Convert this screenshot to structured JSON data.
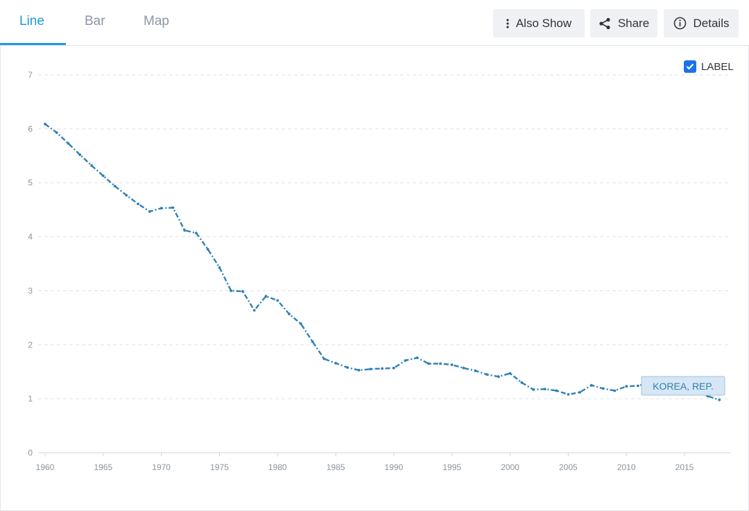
{
  "tabs": [
    {
      "label": "Line",
      "active": true
    },
    {
      "label": "Bar",
      "active": false
    },
    {
      "label": "Map",
      "active": false
    }
  ],
  "toolbar": {
    "also_show": "Also Show",
    "share": "Share",
    "details": "Details"
  },
  "legend": {
    "label": "LABEL",
    "checked": true
  },
  "icons": {
    "also_show": "vertical-dots-icon",
    "share": "share-icon",
    "details": "info-icon",
    "checkbox": "checkmark-icon"
  },
  "colors": {
    "accent": "#1a9ad6",
    "series": "#2f7fb5",
    "checkbox": "#1a73e8"
  },
  "chart_data": {
    "type": "line",
    "title": "",
    "xlabel": "",
    "ylabel": "",
    "xlim": [
      1960,
      2020
    ],
    "ylim": [
      0,
      7
    ],
    "x_ticks": [
      1960,
      1965,
      1970,
      1975,
      1980,
      1985,
      1990,
      1995,
      2000,
      2005,
      2010,
      2015
    ],
    "y_ticks": [
      0,
      1,
      2,
      3,
      4,
      5,
      6,
      7
    ],
    "grid": true,
    "line_style": "dash-dot",
    "x": [
      1960,
      1961,
      1962,
      1963,
      1964,
      1965,
      1966,
      1967,
      1968,
      1969,
      1970,
      1971,
      1972,
      1973,
      1974,
      1975,
      1976,
      1977,
      1978,
      1979,
      1980,
      1981,
      1982,
      1983,
      1984,
      1985,
      1986,
      1987,
      1988,
      1989,
      1990,
      1991,
      1992,
      1993,
      1994,
      1995,
      1996,
      1997,
      1998,
      1999,
      2000,
      2001,
      2002,
      2003,
      2004,
      2005,
      2006,
      2007,
      2008,
      2009,
      2010,
      2011,
      2012,
      2013,
      2014,
      2015,
      2016,
      2017,
      2018
    ],
    "series": [
      {
        "name": "KOREA, REP.",
        "values": [
          6.09,
          5.93,
          5.73,
          5.52,
          5.32,
          5.13,
          4.94,
          4.77,
          4.61,
          4.47,
          4.53,
          4.54,
          4.12,
          4.07,
          3.77,
          3.43,
          3.0,
          2.99,
          2.64,
          2.9,
          2.82,
          2.57,
          2.39,
          2.06,
          1.74,
          1.66,
          1.58,
          1.53,
          1.55,
          1.56,
          1.57,
          1.71,
          1.76,
          1.65,
          1.65,
          1.63,
          1.57,
          1.52,
          1.45,
          1.41,
          1.47,
          1.3,
          1.17,
          1.18,
          1.15,
          1.08,
          1.12,
          1.25,
          1.19,
          1.15,
          1.23,
          1.24,
          1.3,
          1.19,
          1.21,
          1.24,
          1.17,
          1.05,
          0.98
        ]
      }
    ],
    "series_label": "KOREA, REP."
  }
}
